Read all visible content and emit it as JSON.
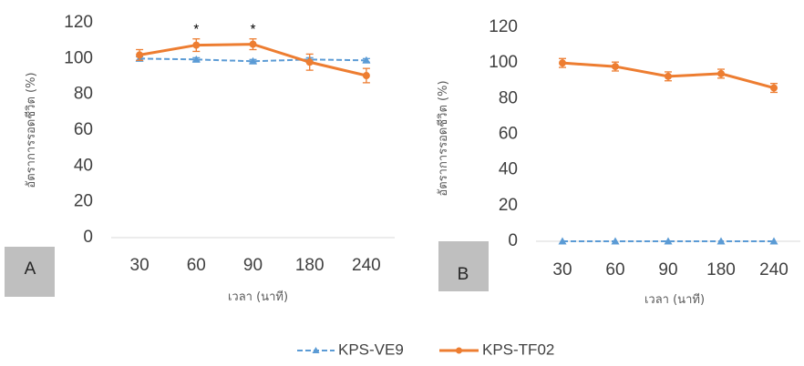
{
  "chart_data": [
    {
      "type": "line",
      "panel_label": "A",
      "categories": [
        "30",
        "60",
        "90",
        "180",
        "240"
      ],
      "xlabel": "เวลา (นาที)",
      "ylabel": "อัตราการรอดชีวิต (%)",
      "ylim": [
        0,
        120
      ],
      "yticks": [
        "0",
        "20",
        "40",
        "60",
        "80",
        "100",
        "120"
      ],
      "grid": false,
      "series": [
        {
          "name": "KPS-VE9",
          "values": [
            100,
            99.5,
            98.5,
            99.5,
            99
          ],
          "errors": [
            1,
            1,
            1,
            1,
            1
          ]
        },
        {
          "name": "KPS-TF02",
          "values": [
            102,
            107.5,
            108,
            98,
            90.5
          ],
          "errors": [
            3,
            3.5,
            3,
            4.5,
            4
          ]
        }
      ],
      "annotations": [
        {
          "text": "*",
          "category": "60"
        },
        {
          "text": "*",
          "category": "90"
        }
      ]
    },
    {
      "type": "line",
      "panel_label": "B",
      "categories": [
        "30",
        "60",
        "90",
        "180",
        "240"
      ],
      "xlabel": "เวลา (นาที)",
      "ylabel": "อัตราการรอดชีวิต (%)",
      "ylim": [
        0,
        120
      ],
      "yticks": [
        "0",
        "20",
        "40",
        "60",
        "80",
        "100",
        "120"
      ],
      "grid": false,
      "series": [
        {
          "name": "KPS-VE9",
          "values": [
            0,
            0,
            0,
            0,
            0
          ],
          "errors": [
            0,
            0,
            0,
            0,
            0
          ]
        },
        {
          "name": "KPS-TF02",
          "values": [
            100,
            98,
            92.5,
            94,
            86
          ],
          "errors": [
            2.5,
            2.5,
            2.5,
            2.5,
            2.5
          ]
        }
      ],
      "annotations": []
    }
  ],
  "legend": {
    "placement": "bottom-center",
    "items": [
      {
        "label": "KPS-VE9",
        "color": "#5b9bd5",
        "style": "dashed",
        "marker": "triangle"
      },
      {
        "label": "KPS-TF02",
        "color": "#ed7d31",
        "style": "solid",
        "marker": "circle"
      }
    ]
  },
  "colors": {
    "series_a": "#5b9bd5",
    "series_b": "#ed7d31",
    "axis": "#d9d9d9",
    "panel_label_box": "#bfbfbf"
  }
}
